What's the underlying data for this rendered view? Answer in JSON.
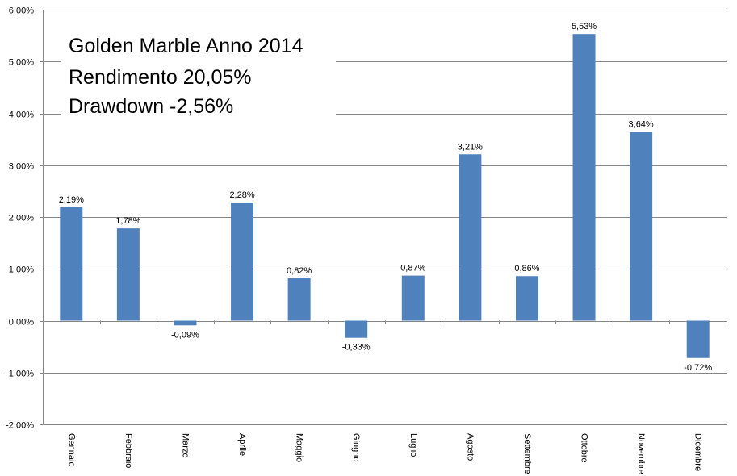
{
  "chart_data": {
    "type": "bar",
    "title_lines": [
      "Golden Marble Anno 2014",
      "Rendimento 20,05%",
      "Drawdown -2,56%"
    ],
    "categories": [
      "Gennaio",
      "Febbraio",
      "Marzo",
      "Aprile",
      "Maggio",
      "Giugno",
      "Luglio",
      "Agosto",
      "Settembre",
      "Ottobre",
      "Novembre",
      "Dicembre"
    ],
    "series": [
      {
        "values": [
          2.19,
          1.78,
          -0.09,
          2.28,
          0.82,
          -0.33,
          0.87,
          3.21,
          0.86,
          5.53,
          3.64,
          -0.72
        ],
        "labels": [
          "2,19%",
          "1,78%",
          "-0,09%",
          "2,28%",
          "0,82%",
          "-0,33%",
          "0,87%",
          "3,21%",
          "0,86%",
          "5,53%",
          "3,64%",
          "-0,72%"
        ]
      }
    ],
    "ylim": [
      -2,
      6
    ],
    "yticks": [
      -2,
      -1,
      0,
      1,
      2,
      3,
      4,
      5,
      6
    ],
    "ytick_labels": [
      "-2,00%",
      "-1,00%",
      "0,00%",
      "1,00%",
      "2,00%",
      "3,00%",
      "4,00%",
      "5,00%",
      "6,00%"
    ],
    "xlabel": "",
    "ylabel": "",
    "grid": true,
    "legend": "none",
    "colors": {
      "bar": "#4f81bd",
      "grid": "#868686",
      "axis": "#868686"
    }
  }
}
